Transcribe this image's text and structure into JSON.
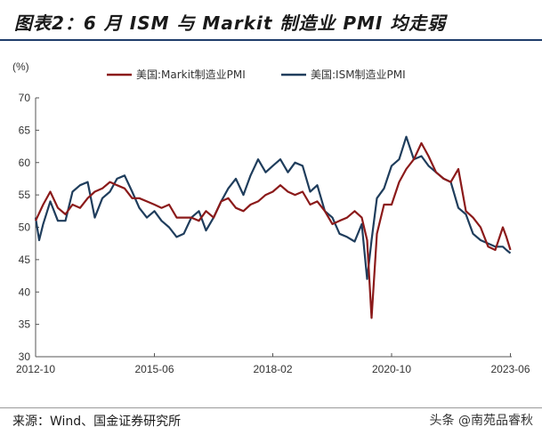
{
  "title": "图表2：6 月 ISM 与 Markit 制造业 PMI 均走弱",
  "source": "来源：Wind、国金证券研究所",
  "watermark": "头条 @南苑品睿秋",
  "colors": {
    "markit": "#8b1a1a",
    "ism": "#1f3d5c",
    "title_rule": "#1f3d6b",
    "axis": "#555555"
  },
  "chart_data": {
    "type": "line",
    "ylabel": "(%)",
    "ylim": [
      30,
      70
    ],
    "yticks": [
      30,
      35,
      40,
      45,
      50,
      55,
      60,
      65,
      70
    ],
    "xlim": [
      2012.75,
      2023.45
    ],
    "xticks": [
      {
        "label": "2012-10",
        "value": 2012.75
      },
      {
        "label": "2015-06",
        "value": 2015.42
      },
      {
        "label": "2018-02",
        "value": 2018.08
      },
      {
        "label": "2020-10",
        "value": 2020.75
      },
      {
        "label": "2023-06",
        "value": 2023.42
      }
    ],
    "series": [
      {
        "name": "美国:Markit制造业PMI",
        "color": "#8b1a1a",
        "x": [
          2012.75,
          2012.92,
          2013.08,
          2013.25,
          2013.42,
          2013.58,
          2013.75,
          2013.92,
          2014.08,
          2014.25,
          2014.42,
          2014.58,
          2014.75,
          2014.92,
          2015.08,
          2015.25,
          2015.42,
          2015.58,
          2015.75,
          2015.92,
          2016.08,
          2016.25,
          2016.42,
          2016.58,
          2016.75,
          2016.92,
          2017.08,
          2017.25,
          2017.42,
          2017.58,
          2017.75,
          2017.92,
          2018.08,
          2018.25,
          2018.42,
          2018.58,
          2018.75,
          2018.92,
          2019.08,
          2019.25,
          2019.42,
          2019.58,
          2019.75,
          2019.92,
          2020.08,
          2020.2,
          2020.3,
          2020.42,
          2020.58,
          2020.75,
          2020.92,
          2021.08,
          2021.25,
          2021.42,
          2021.58,
          2021.75,
          2021.92,
          2022.08,
          2022.25,
          2022.42,
          2022.58,
          2022.75,
          2022.92,
          2023.08,
          2023.25,
          2023.33,
          2023.42
        ],
        "values": [
          51.0,
          53.5,
          55.5,
          53.0,
          52.0,
          53.5,
          53.0,
          54.5,
          55.5,
          56.0,
          57.0,
          56.5,
          56.0,
          54.5,
          54.5,
          54.0,
          53.5,
          53.0,
          53.5,
          51.5,
          51.5,
          51.5,
          51.0,
          52.5,
          51.5,
          54.0,
          54.5,
          53.0,
          52.5,
          53.5,
          54.0,
          55.0,
          55.5,
          56.5,
          55.5,
          55.0,
          55.5,
          53.5,
          54.0,
          52.5,
          50.5,
          51.0,
          51.5,
          52.5,
          51.5,
          48.0,
          36.0,
          49.0,
          53.5,
          53.5,
          57.0,
          59.0,
          60.5,
          63.0,
          61.0,
          58.5,
          57.5,
          57.0,
          59.0,
          52.5,
          51.5,
          50.0,
          47.0,
          46.5,
          50.0,
          48.5,
          46.5
        ]
      },
      {
        "name": "美国:ISM制造业PMI",
        "color": "#1f3d5c",
        "x": [
          2012.75,
          2012.83,
          2012.92,
          2013.08,
          2013.25,
          2013.42,
          2013.58,
          2013.75,
          2013.92,
          2014.08,
          2014.25,
          2014.42,
          2014.58,
          2014.75,
          2014.92,
          2015.08,
          2015.25,
          2015.42,
          2015.58,
          2015.75,
          2015.92,
          2016.08,
          2016.25,
          2016.42,
          2016.58,
          2016.75,
          2016.92,
          2017.08,
          2017.25,
          2017.42,
          2017.58,
          2017.75,
          2017.92,
          2018.08,
          2018.25,
          2018.42,
          2018.58,
          2018.75,
          2018.92,
          2019.08,
          2019.25,
          2019.42,
          2019.58,
          2019.75,
          2019.92,
          2020.08,
          2020.2,
          2020.3,
          2020.42,
          2020.58,
          2020.75,
          2020.92,
          2021.08,
          2021.25,
          2021.42,
          2021.58,
          2021.75,
          2021.92,
          2022.08,
          2022.25,
          2022.42,
          2022.58,
          2022.75,
          2022.92,
          2023.08,
          2023.25,
          2023.33,
          2023.42
        ],
        "values": [
          51.5,
          48.0,
          50.5,
          54.0,
          51.0,
          51.0,
          55.5,
          56.5,
          57.0,
          51.5,
          54.5,
          55.5,
          57.5,
          58.0,
          55.5,
          53.0,
          51.5,
          52.5,
          51.0,
          50.0,
          48.5,
          49.0,
          51.5,
          52.5,
          49.5,
          51.5,
          54.0,
          56.0,
          57.5,
          55.0,
          58.0,
          60.5,
          58.5,
          59.5,
          60.5,
          58.5,
          60.0,
          59.5,
          55.5,
          56.5,
          52.5,
          51.5,
          49.0,
          48.5,
          47.8,
          50.5,
          42.0,
          48.0,
          54.5,
          56.0,
          59.5,
          60.5,
          64.0,
          60.5,
          61.0,
          59.5,
          58.5,
          57.5,
          57.0,
          53.0,
          52.0,
          49.0,
          48.0,
          47.5,
          47.0,
          47.0,
          46.5,
          46.0
        ]
      }
    ]
  }
}
